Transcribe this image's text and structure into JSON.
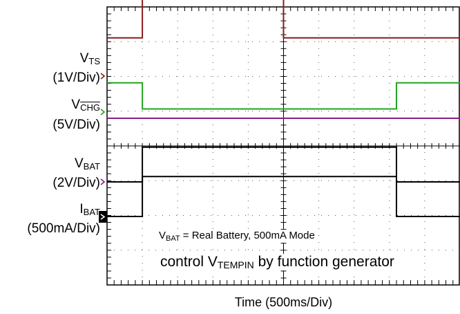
{
  "chart_data": {
    "type": "line",
    "title": "",
    "xlabel": "Time  (500ms/Div)",
    "x_divisions": 10,
    "y_divisions": 8,
    "grid": true,
    "channels": [
      {
        "id": "vts",
        "label_main": "V",
        "label_sub": "TS",
        "label_scale": "(1V/Div)",
        "color": "#8b1a1a"
      },
      {
        "id": "vchg",
        "label_main": "V",
        "label_sub": "CHG",
        "label_scale": "(5V/Div)",
        "color": "#1fa51f",
        "sub_overline": true
      },
      {
        "id": "vbat",
        "label_main": "V",
        "label_sub": "BAT",
        "label_scale": "(2V/Div)",
        "color": "#000000"
      },
      {
        "id": "ibat",
        "label_main": "I",
        "label_sub": "BAT",
        "label_scale": "(500mA/Div)",
        "color": "#000000"
      },
      {
        "id": "ref",
        "color": "#8b1a8b"
      }
    ],
    "series": [
      {
        "name": "VTS",
        "x": [
          0,
          1.0,
          1.0,
          4.1,
          4.1,
          5.0,
          5.0,
          10
        ],
        "y": [
          1.1,
          1.1,
          2.9,
          2.75,
          2.75,
          2.75,
          1.1,
          1.1
        ]
      },
      {
        "name": "VCHG",
        "x": [
          0,
          1.0,
          1.0,
          8.2,
          8.2,
          10
        ],
        "y": [
          0.8,
          0.8,
          0.05,
          0.05,
          0.8,
          0.8
        ]
      },
      {
        "name": "VBAT",
        "x": [
          0,
          1.0,
          1.0,
          8.2,
          8.2,
          10
        ],
        "y": [
          0,
          0,
          1.0,
          1.0,
          0,
          0
        ]
      },
      {
        "name": "IBAT",
        "x": [
          0,
          1.0,
          1.0,
          8.2,
          8.2,
          10
        ],
        "y": [
          0,
          0,
          1.15,
          1.15,
          0,
          0
        ]
      }
    ],
    "annotations": {
      "a1_pre": "V",
      "a1_sub": "BAT",
      "a1_post": " = Real Battery, 500mA Mode",
      "a2_pre": "control V",
      "a2_sub": "TEMPIN",
      "a2_post": " by function generator"
    }
  }
}
